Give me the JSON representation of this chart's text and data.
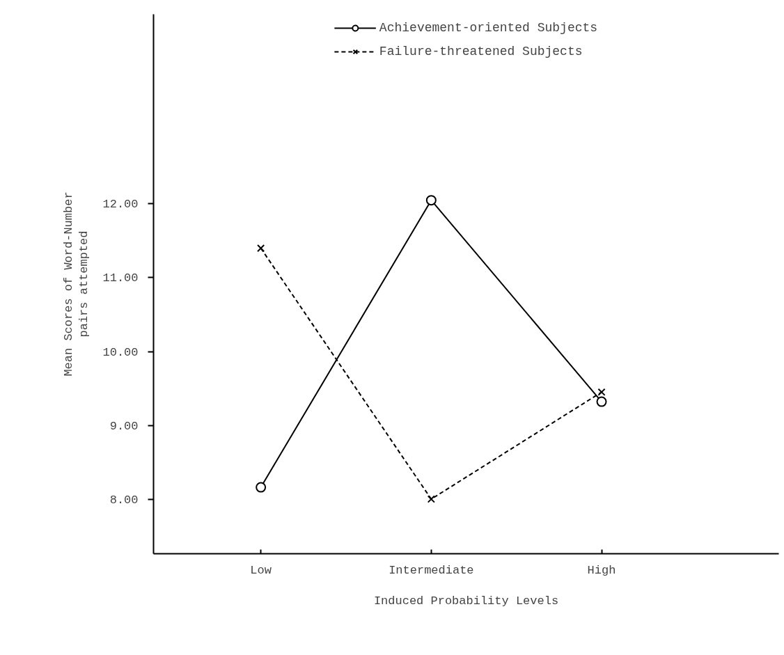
{
  "chart_data": {
    "type": "line",
    "xlabel": "Induced Probability Levels",
    "ylabel": "Mean Scores of Word-Number\npairs attempted",
    "categories": [
      "Low",
      "Intermediate",
      "High"
    ],
    "series": [
      {
        "name": "Achievement-oriented Subjects",
        "color": "#000000",
        "marker": "circle",
        "line_style": "solid",
        "values": [
          8.16,
          12.05,
          9.32
        ]
      },
      {
        "name": "Failure-threatened Subjects",
        "color": "#000000",
        "marker": "cross",
        "line_style": "dashed",
        "values": [
          11.4,
          8.0,
          9.45
        ]
      }
    ],
    "ylim": [
      7.26,
      14.57
    ],
    "yticks": [
      {
        "value": 8,
        "label": "8.00"
      },
      {
        "value": 9,
        "label": "9.00"
      },
      {
        "value": 10,
        "label": "10.00"
      },
      {
        "value": 11,
        "label": "11.00"
      },
      {
        "value": 12,
        "label": "12.00"
      }
    ],
    "grid": false,
    "legend": "top"
  }
}
